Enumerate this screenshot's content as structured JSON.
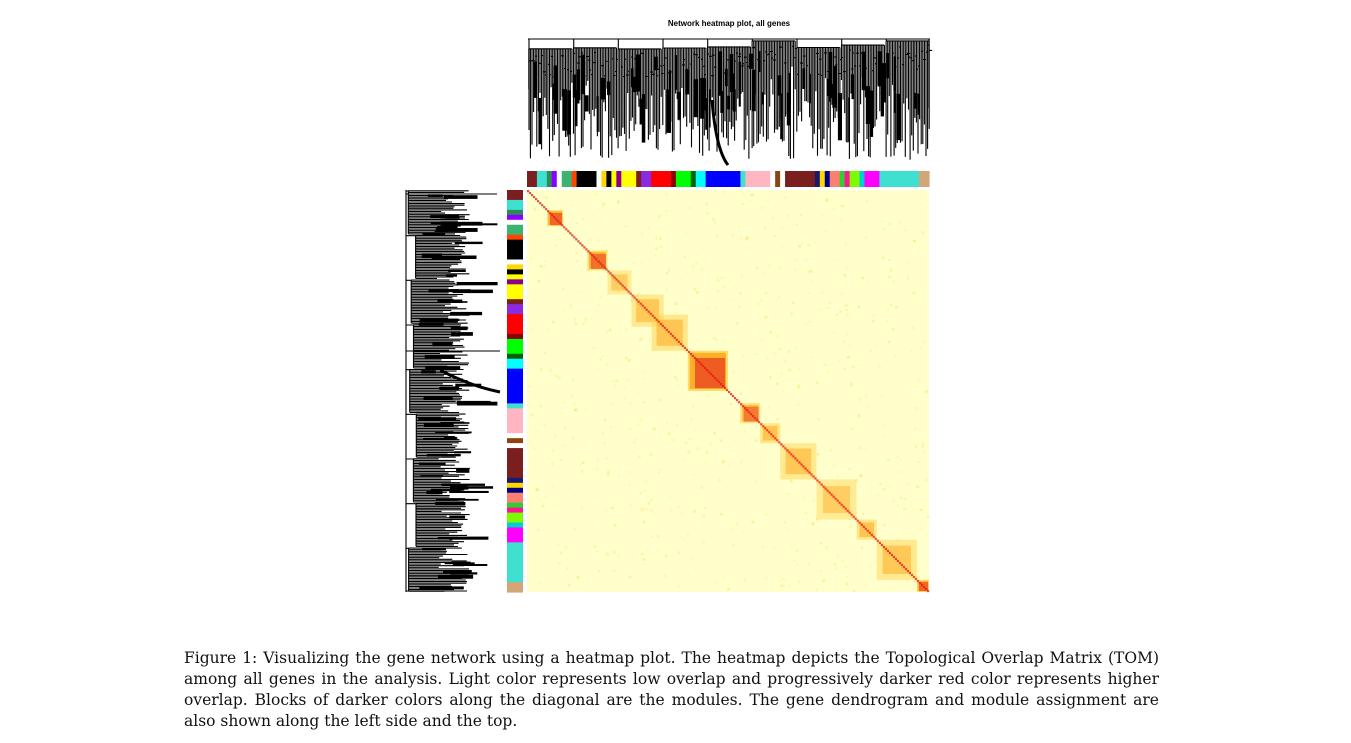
{
  "chart_data": {
    "type": "heatmap",
    "title": "Network heatmap plot, all genes",
    "matrix": "TOM",
    "low_color": "#ffffcc",
    "mid_color": "#ffd24a",
    "high_color": "#e21a1a",
    "modules": [
      {
        "color": "#7b1e1e",
        "size": 2
      },
      {
        "color": "#40e0d0",
        "size": 2
      },
      {
        "color": "#2e8b57",
        "size": 1
      },
      {
        "color": "#8b00ff",
        "size": 1
      },
      {
        "color": "#ffffff",
        "size": 1
      },
      {
        "color": "#3cb371",
        "size": 2
      },
      {
        "color": "#ff4500",
        "size": 1
      },
      {
        "color": "#000000",
        "size": 4
      },
      {
        "color": "#ffffff",
        "size": 1
      },
      {
        "color": "#ffd700",
        "size": 1
      },
      {
        "color": "#000000",
        "size": 1
      },
      {
        "color": "#ffff00",
        "size": 1
      },
      {
        "color": "#8b008b",
        "size": 1
      },
      {
        "color": "#ffff00",
        "size": 3
      },
      {
        "color": "#7b1e1e",
        "size": 1
      },
      {
        "color": "#8a2be2",
        "size": 2
      },
      {
        "color": "#ff0000",
        "size": 4
      },
      {
        "color": "#8b0000",
        "size": 1
      },
      {
        "color": "#00ff00",
        "size": 3
      },
      {
        "color": "#006400",
        "size": 1
      },
      {
        "color": "#00ffff",
        "size": 2
      },
      {
        "color": "#0000ff",
        "size": 7
      },
      {
        "color": "#40e0d0",
        "size": 1
      },
      {
        "color": "#ffb6c1",
        "size": 5
      },
      {
        "color": "#ffffff",
        "size": 1
      },
      {
        "color": "#8b4513",
        "size": 1
      },
      {
        "color": "#ffffff",
        "size": 1
      },
      {
        "color": "#7b1e1e",
        "size": 6
      },
      {
        "color": "#191970",
        "size": 1
      },
      {
        "color": "#ffd700",
        "size": 1
      },
      {
        "color": "#000080",
        "size": 1
      },
      {
        "color": "#fa8072",
        "size": 2
      },
      {
        "color": "#32cd32",
        "size": 1
      },
      {
        "color": "#ff1493",
        "size": 1
      },
      {
        "color": "#7cfc00",
        "size": 2
      },
      {
        "color": "#00ced1",
        "size": 1
      },
      {
        "color": "#ff00ff",
        "size": 3
      },
      {
        "color": "#40e0d0",
        "size": 8
      },
      {
        "color": "#d2a679",
        "size": 2
      }
    ],
    "diagonal_blocks": [
      {
        "start": 0.05,
        "end": 0.09,
        "strength": 0.9
      },
      {
        "start": 0.15,
        "end": 0.2,
        "strength": 0.8
      },
      {
        "start": 0.2,
        "end": 0.26,
        "strength": 0.35
      },
      {
        "start": 0.26,
        "end": 0.34,
        "strength": 0.45
      },
      {
        "start": 0.31,
        "end": 0.4,
        "strength": 0.5
      },
      {
        "start": 0.4,
        "end": 0.5,
        "strength": 1.0
      },
      {
        "start": 0.53,
        "end": 0.58,
        "strength": 0.7
      },
      {
        "start": 0.58,
        "end": 0.63,
        "strength": 0.5
      },
      {
        "start": 0.63,
        "end": 0.72,
        "strength": 0.45
      },
      {
        "start": 0.72,
        "end": 0.82,
        "strength": 0.35
      },
      {
        "start": 0.82,
        "end": 0.87,
        "strength": 0.5
      },
      {
        "start": 0.87,
        "end": 0.97,
        "strength": 0.45
      },
      {
        "start": 0.97,
        "end": 1.0,
        "strength": 0.9
      }
    ]
  },
  "caption": "Figure 1: Visualizing the gene network using a heatmap plot. The heatmap depicts the Topological Overlap Matrix (TOM) among all genes in the analysis.  Light color represents low overlap and progressively darker red color represents higher overlap. Blocks of darker colors along the diagonal are the modules. The gene dendrogram and module assignment are also shown along the left side and the top."
}
